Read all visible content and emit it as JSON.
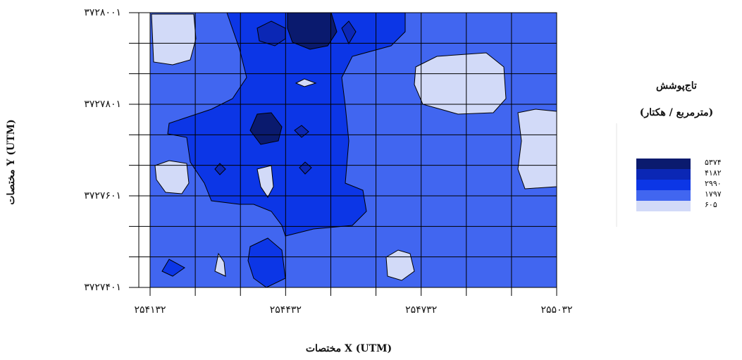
{
  "chart_data": {
    "type": "contour",
    "x_label": "مختصات X (UTM)",
    "y_label": "مختصات Y (UTM)",
    "legend_title": "تاج‌پوشش",
    "legend_subtitle": "(مترمربع / هکتار)",
    "xlim": [
      254132,
      255032
    ],
    "ylim": [
      3727401,
      3728001
    ],
    "xticks": [
      {
        "value": 254132,
        "label": "۲۵۴۱۳۲"
      },
      {
        "value": 254432,
        "label": "۲۵۴۴۳۲"
      },
      {
        "value": 254732,
        "label": "۲۵۴۷۳۲"
      },
      {
        "value": 255032,
        "label": "۲۵۵۰۳۲"
      }
    ],
    "yticks": [
      {
        "value": 3727401,
        "label": "۳۷۲۷۴۰۱"
      },
      {
        "value": 3727601,
        "label": "۳۷۲۷۶۰۱"
      },
      {
        "value": 3727801,
        "label": "۳۷۲۷۸۰۱"
      },
      {
        "value": 3728001,
        "label": "۳۷۲۸۰۰۱"
      }
    ],
    "grid": true,
    "levels": [
      {
        "value": 5374,
        "label": "۵۳۷۴",
        "color": "#0a1a6e"
      },
      {
        "value": 4182,
        "label": "۴۱۸۲",
        "color": "#0b27b5"
      },
      {
        "value": 2990,
        "label": "۲۹۹۰",
        "color": "#0c36e6"
      },
      {
        "value": 1797,
        "label": "۱۷۹۷",
        "color": "#4166f0"
      },
      {
        "value": 605,
        "label": "۶۰۵",
        "color": "#d2daf8"
      }
    ]
  }
}
